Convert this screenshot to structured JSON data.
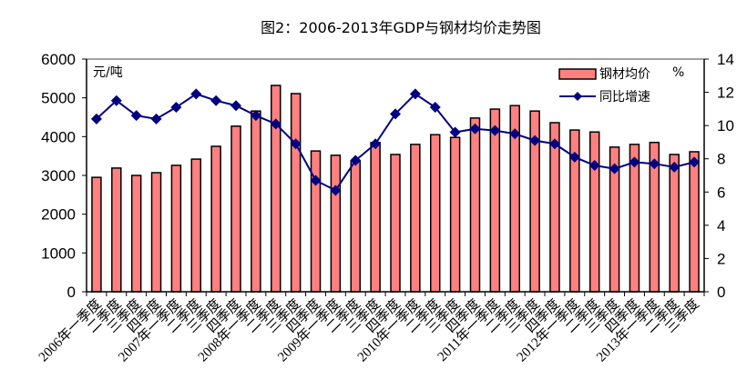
{
  "chart_data": {
    "type": "bar+line",
    "title": "图2：2006-2013年GDP与钢材均价走势图",
    "left_unit_label": "元/吨",
    "right_unit_label": "%",
    "categories": [
      "2006年一季度",
      "二季度",
      "三季度",
      "四季度",
      "2007年一季度",
      "二季度",
      "三季度",
      "四季度",
      "2008年一季度",
      "二季度",
      "三季度",
      "四季度",
      "2009年一季度",
      "二季度",
      "三季度",
      "四季度",
      "2010年一季度",
      "二季度",
      "三季度",
      "四季度",
      "2011年一季度",
      "二季度",
      "三季度",
      "四季度",
      "2012年一季度",
      "二季度",
      "三季度",
      "四季度",
      "2013年一季度",
      "二季度",
      "三季度"
    ],
    "series": [
      {
        "name": "钢材均价",
        "type": "bar",
        "axis": "left",
        "color": "#ff8080",
        "values": [
          2950,
          3190,
          3000,
          3070,
          3260,
          3420,
          3750,
          4270,
          4660,
          5320,
          5110,
          3630,
          3520,
          3380,
          3850,
          3540,
          3800,
          4050,
          3980,
          4480,
          4710,
          4800,
          4660,
          4360,
          4170,
          4120,
          3730,
          3800,
          3850,
          3540,
          3610
        ]
      },
      {
        "name": "同比增速",
        "type": "line",
        "axis": "right",
        "color": "#000080",
        "values": [
          10.4,
          11.5,
          10.6,
          10.4,
          11.1,
          11.9,
          11.5,
          11.2,
          10.6,
          10.1,
          8.9,
          6.7,
          6.1,
          7.9,
          8.9,
          10.7,
          11.9,
          11.1,
          9.6,
          9.8,
          9.7,
          9.5,
          9.1,
          8.9,
          8.1,
          7.6,
          7.4,
          7.8,
          7.7,
          7.5,
          7.8
        ]
      }
    ],
    "y_left": {
      "min": 0,
      "max": 6000,
      "ticks": [
        "0",
        "1000",
        "2000",
        "3000",
        "4000",
        "5000",
        "6000"
      ]
    },
    "y_right": {
      "min": 0,
      "max": 14,
      "ticks": [
        "0",
        "2",
        "4",
        "6",
        "8",
        "10",
        "12",
        "14"
      ]
    },
    "grid": false,
    "legend_position": "top-right"
  }
}
